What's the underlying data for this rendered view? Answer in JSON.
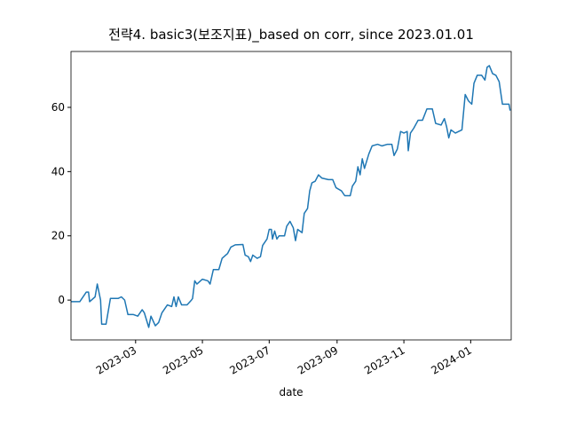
{
  "chart_data": {
    "type": "line",
    "title": "전략4. basic3(보조지표)_based on corr, since 2023.01.01",
    "x_label": "date",
    "x": [
      "2023-01-01",
      "2023-01-09",
      "2023-01-15",
      "2023-01-17",
      "2023-01-18",
      "2023-01-23",
      "2023-01-25",
      "2023-01-28",
      "2023-01-29",
      "2023-02-02",
      "2023-02-06",
      "2023-02-13",
      "2023-02-16",
      "2023-02-19",
      "2023-02-22",
      "2023-02-27",
      "2023-03-03",
      "2023-03-07",
      "2023-03-09",
      "2023-03-13",
      "2023-03-15",
      "2023-03-19",
      "2023-03-22",
      "2023-03-25",
      "2023-03-30",
      "2023-04-03",
      "2023-04-05",
      "2023-04-07",
      "2023-04-09",
      "2023-04-12",
      "2023-04-17",
      "2023-04-21",
      "2023-04-22",
      "2023-04-24",
      "2023-04-26",
      "2023-05-01",
      "2023-05-06",
      "2023-05-08",
      "2023-05-11",
      "2023-05-16",
      "2023-05-19",
      "2023-05-24",
      "2023-05-27",
      "2023-05-31",
      "2023-06-07",
      "2023-06-09",
      "2023-06-12",
      "2023-06-14",
      "2023-06-16",
      "2023-06-20",
      "2023-06-23",
      "2023-06-25",
      "2023-06-29",
      "2023-07-01",
      "2023-07-03",
      "2023-07-04",
      "2023-07-06",
      "2023-07-08",
      "2023-07-10",
      "2023-07-15",
      "2023-07-17",
      "2023-07-20",
      "2023-07-23",
      "2023-07-25",
      "2023-07-27",
      "2023-07-31",
      "2023-08-02",
      "2023-08-05",
      "2023-08-07",
      "2023-08-09",
      "2023-08-12",
      "2023-08-15",
      "2023-08-18",
      "2023-08-24",
      "2023-08-28",
      "2023-08-31",
      "2023-09-05",
      "2023-09-08",
      "2023-09-13",
      "2023-09-15",
      "2023-09-18",
      "2023-09-20",
      "2023-09-22",
      "2023-09-24",
      "2023-09-26",
      "2023-09-30",
      "2023-10-03",
      "2023-10-08",
      "2023-10-12",
      "2023-10-17",
      "2023-10-21",
      "2023-10-23",
      "2023-10-26",
      "2023-10-29",
      "2023-11-01",
      "2023-11-04",
      "2023-11-05",
      "2023-11-07",
      "2023-11-10",
      "2023-11-14",
      "2023-11-18",
      "2023-11-22",
      "2023-11-27",
      "2023-11-30",
      "2023-12-05",
      "2023-12-08",
      "2023-12-10",
      "2023-12-12",
      "2023-12-14",
      "2023-12-18",
      "2023-12-24",
      "2023-12-27",
      "2023-12-30",
      "2024-01-02",
      "2024-01-04",
      "2024-01-07",
      "2024-01-11",
      "2024-01-14",
      "2024-01-16",
      "2024-01-18",
      "2024-01-21",
      "2024-01-24",
      "2024-01-27",
      "2024-01-30",
      "2024-02-05",
      "2024-02-06"
    ],
    "series": [
      {
        "color": "#1f77b4",
        "values": [
          -0.5,
          -0.5,
          2.5,
          2.5,
          -0.5,
          1,
          5,
          0,
          -7.5,
          -7.5,
          0.5,
          0.5,
          1,
          0,
          -4.5,
          -4.5,
          -5,
          -3,
          -4,
          -8.5,
          -5,
          -8,
          -7,
          -4,
          -1.5,
          -2,
          1,
          -2,
          1,
          -1.5,
          -1.5,
          0,
          0.5,
          6,
          5,
          6.5,
          6,
          5,
          9.5,
          9.5,
          13,
          14.5,
          16.5,
          17.2,
          17.3,
          14,
          13.5,
          12,
          14,
          13,
          13.5,
          17,
          19,
          22,
          22,
          19,
          21.5,
          19,
          20,
          20,
          23,
          24.5,
          22.5,
          18.5,
          22,
          21,
          27,
          28.5,
          34,
          36.5,
          37,
          39,
          38,
          37.5,
          37.5,
          35,
          34,
          32.5,
          32.5,
          35.5,
          37,
          41.5,
          39,
          44,
          41,
          45.5,
          48,
          48.5,
          48,
          48.5,
          48.5,
          45,
          47,
          52.5,
          52,
          52.5,
          46.5,
          52,
          53.5,
          56,
          56,
          59.5,
          59.5,
          55,
          54.5,
          56.5,
          54,
          50.5,
          53,
          52,
          53,
          64,
          62,
          61,
          67.5,
          70,
          70,
          68.5,
          72.5,
          73,
          70.5,
          70,
          68,
          61,
          61,
          59
        ]
      }
    ],
    "xlim": [
      "2023-01-01",
      "2024-02-07"
    ],
    "xticks": [
      {
        "value": "2023-03-01",
        "label": "2023-03"
      },
      {
        "value": "2023-05-01",
        "label": "2023-05"
      },
      {
        "value": "2023-07-01",
        "label": "2023-07"
      },
      {
        "value": "2023-09-01",
        "label": "2023-09"
      },
      {
        "value": "2023-11-01",
        "label": "2023-11"
      },
      {
        "value": "2024-01-01",
        "label": "2024-01"
      }
    ],
    "ylim": [
      -12.4,
      77.4
    ],
    "yticks": [
      0,
      20,
      40,
      60
    ],
    "grid": false
  }
}
